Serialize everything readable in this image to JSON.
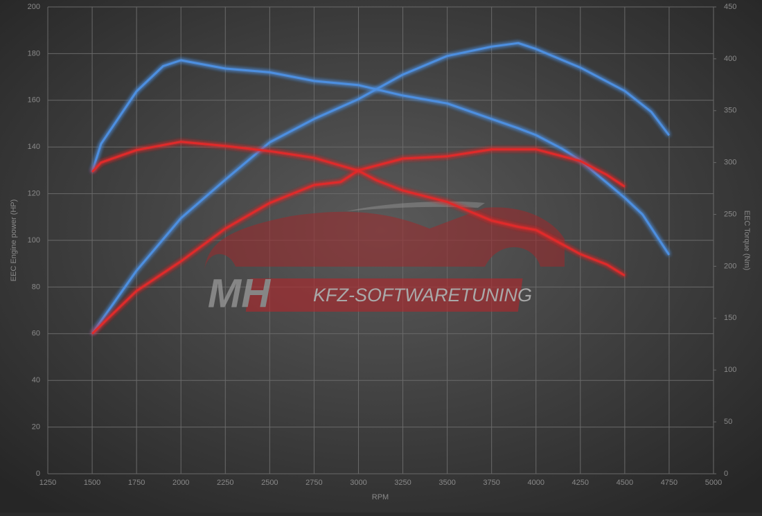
{
  "chart_data": {
    "type": "line",
    "xlabel": "RPM",
    "ylabel": "EEC Engine power (HP)",
    "y2label": "EEC Torque (Nm)",
    "xlim": [
      1250,
      5000
    ],
    "xticks": [
      1250,
      1500,
      1750,
      2000,
      2250,
      2500,
      2750,
      3000,
      3250,
      3500,
      3750,
      4000,
      4250,
      4500,
      4750,
      5000
    ],
    "ylim": [
      0,
      200
    ],
    "yticks": [
      0,
      20,
      40,
      60,
      80,
      100,
      120,
      140,
      160,
      180,
      200
    ],
    "y2lim": [
      0,
      450
    ],
    "y2ticks": [
      0,
      50,
      100,
      150,
      200,
      250,
      300,
      350,
      400,
      450
    ],
    "grid": true,
    "series": [
      {
        "color": "#4d8fe0",
        "axis": "y",
        "x": [
          1500,
          1750,
          2000,
          2250,
          2500,
          2750,
          3000,
          3250,
          3500,
          3750,
          3900,
          4000,
          4250,
          4500,
          4650,
          4750
        ],
        "values": [
          60,
          87,
          109.5,
          126,
          142,
          152,
          160.5,
          171,
          179,
          183,
          184.5,
          182,
          174,
          164,
          155,
          145
        ]
      },
      {
        "color": "#4d8fe0",
        "axis": "y2",
        "x": [
          1500,
          1550,
          1750,
          1900,
          2000,
          2250,
          2500,
          2750,
          3000,
          3250,
          3500,
          3750,
          3900,
          4000,
          4150,
          4250,
          4500,
          4600,
          4750
        ],
        "values": [
          291,
          318,
          368.6,
          393,
          398.6,
          390.6,
          387,
          378.6,
          374.6,
          364.6,
          357,
          342,
          333,
          326.5,
          313,
          302,
          266,
          250,
          211
        ]
      },
      {
        "color": "#e02a2a",
        "axis": "y",
        "x": [
          1500,
          1750,
          2000,
          2250,
          2500,
          2750,
          2900,
          3000,
          3250,
          3500,
          3750,
          4000,
          4250,
          4400,
          4500
        ],
        "values": [
          60,
          78.3,
          91,
          105,
          116,
          123.7,
          125,
          130,
          135,
          136,
          139,
          139,
          134,
          128,
          123
        ]
      },
      {
        "color": "#e02a2a",
        "axis": "y2",
        "x": [
          1500,
          1550,
          1750,
          2000,
          2250,
          2500,
          2750,
          3000,
          3100,
          3250,
          3500,
          3750,
          3900,
          4000,
          4250,
          4400,
          4500
        ],
        "values": [
          291,
          300,
          312,
          320,
          316,
          311,
          304.5,
          292,
          283,
          273,
          262,
          244,
          238,
          235,
          211.7,
          201.6,
          191
        ]
      }
    ]
  },
  "watermark": {
    "logo": "MH",
    "text": "KFZ-SOFTWARETUNING"
  }
}
